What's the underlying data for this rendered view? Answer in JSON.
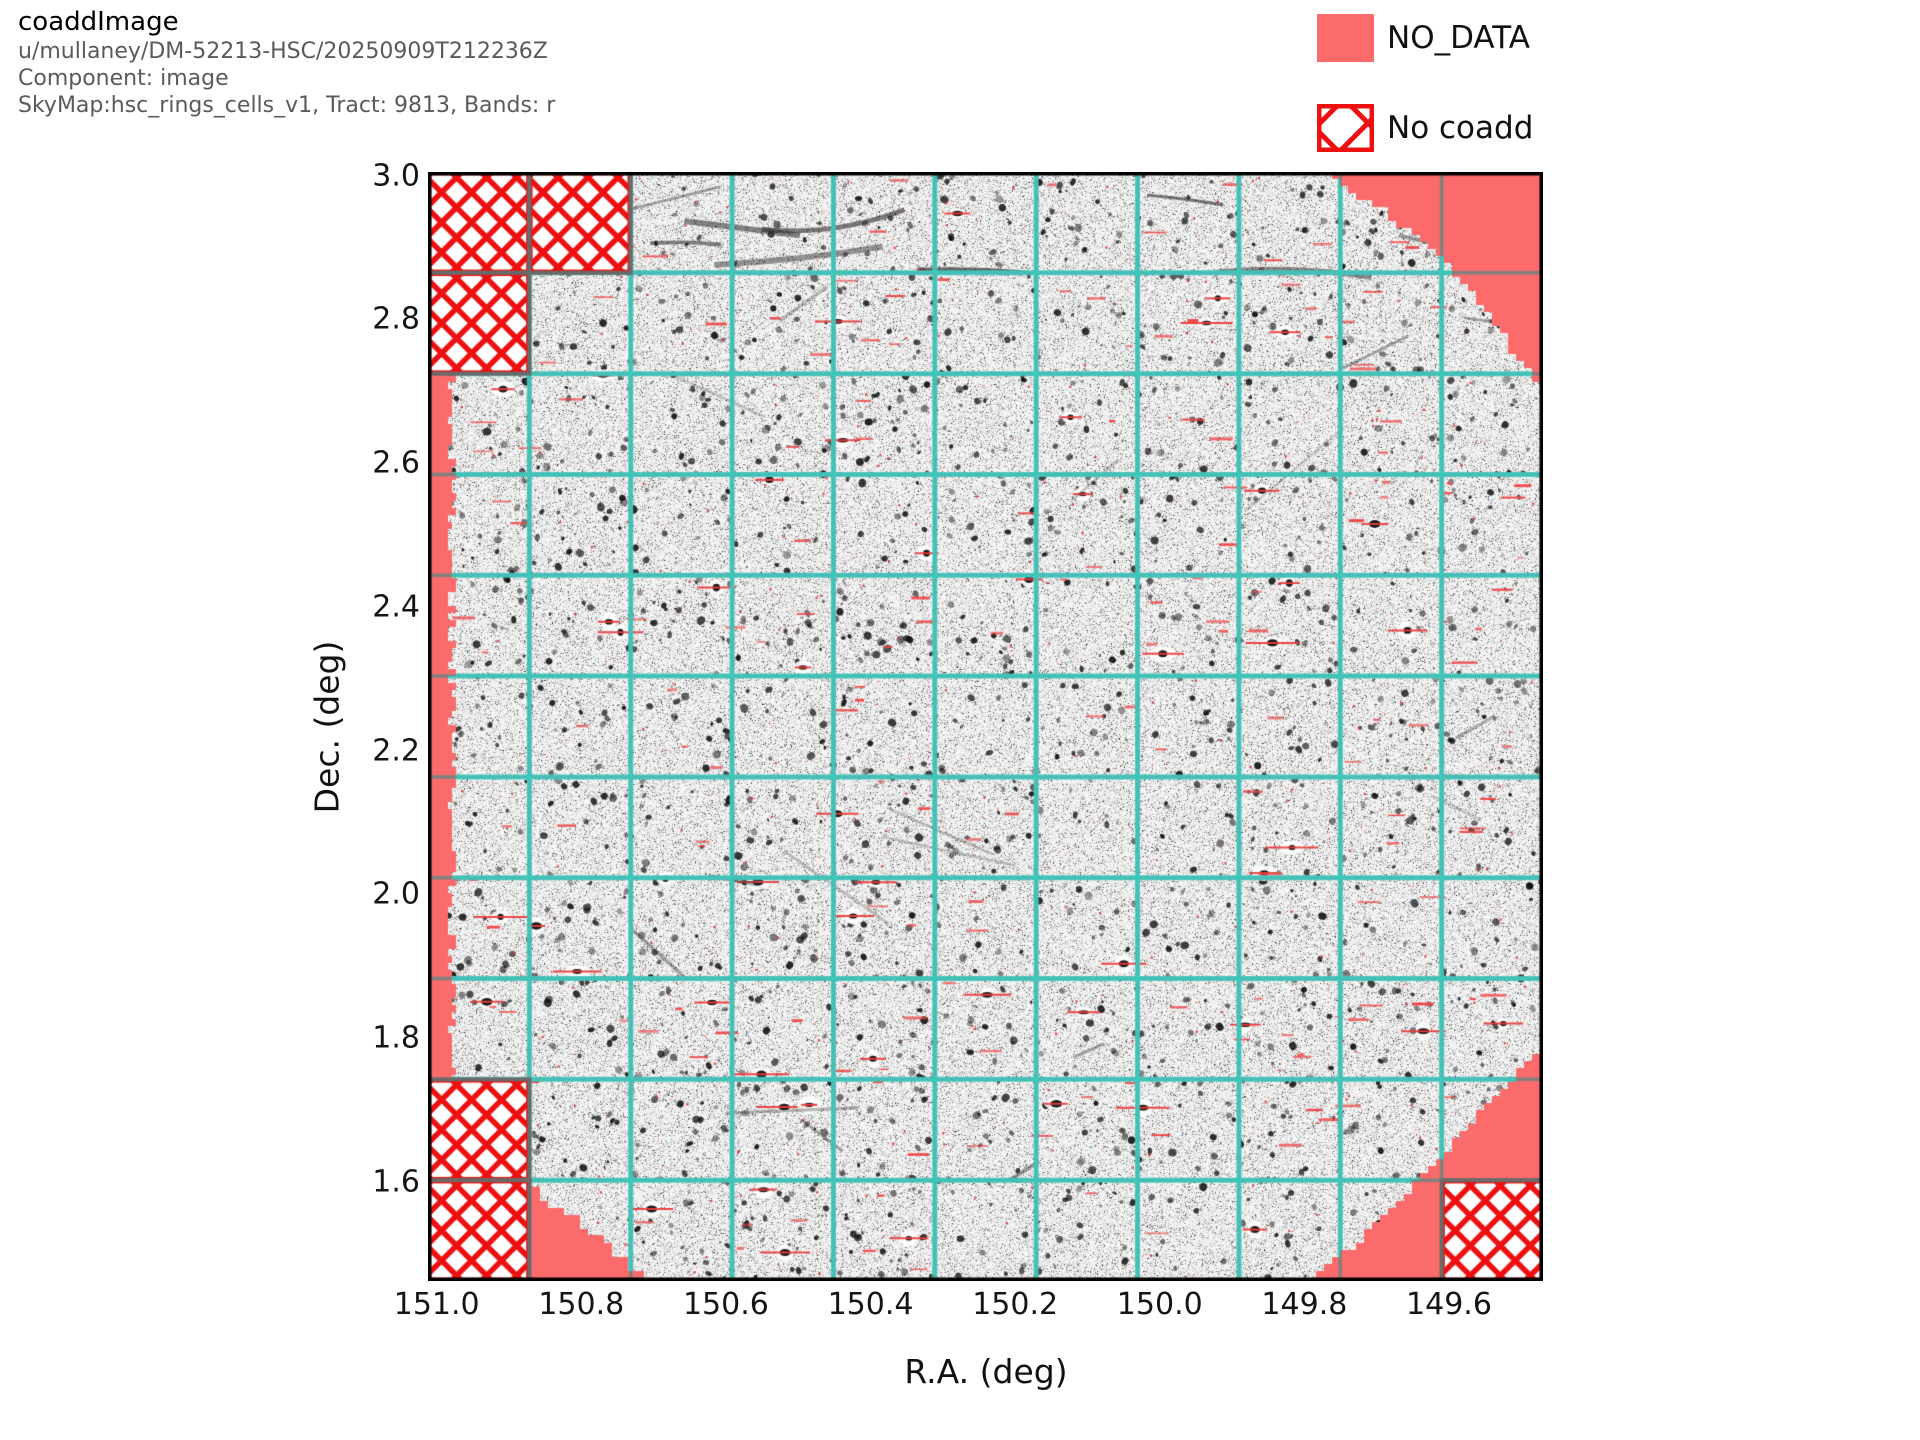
{
  "header": {
    "title": "coaddImage",
    "line1": "u/mullaney/DM-52213-HSC/20250909T212236Z",
    "line2": "Component: image",
    "line3": "SkyMap:hsc_rings_cells_v1, Tract: 9813, Bands: r"
  },
  "legend": {
    "no_data_label": "NO_DATA",
    "no_coadd_label": "No coadd"
  },
  "axes": {
    "xlabel": "R.A. (deg)",
    "ylabel": "Dec. (deg)"
  },
  "colors": {
    "no_data": "#fb6b6b",
    "cell_grid": "#3ec6bb",
    "patch_grid": "#808080",
    "hatch_red": "#ee1010",
    "patch_border": "#6a6a6a",
    "frame": "#000000",
    "image_base": "#f1f1f1"
  },
  "chart_data": {
    "type": "heatmap",
    "title": "coaddImage",
    "subtitle": [
      "u/mullaney/DM-52213-HSC/20250909T212236Z",
      "Component: image",
      "SkyMap:hsc_rings_cells_v1, Tract: 9813, Bands: r"
    ],
    "xlabel": "R.A. (deg)",
    "ylabel": "Dec. (deg)",
    "x_ticks": [
      151.0,
      150.8,
      150.6,
      150.4,
      150.2,
      150.0,
      149.8,
      149.6
    ],
    "y_ticks": [
      3.0,
      2.8,
      2.6,
      2.4,
      2.2,
      2.0,
      1.8,
      1.6
    ],
    "xlim": [
      151.012,
      149.47
    ],
    "ylim": [
      1.462,
      3.005
    ],
    "x_inverted": true,
    "grid": {
      "patch_cols": 11,
      "patch_rows": 11,
      "on": true
    },
    "tract": 9813,
    "bands": "r",
    "skymap": "hsc_rings_cells_v1",
    "legend_entries": [
      "NO_DATA",
      "No coadd"
    ],
    "legend_position": "upper right outside",
    "no_coadd_patches": [
      {
        "col": 0,
        "row": 0
      },
      {
        "col": 1,
        "row": 0
      },
      {
        "col": 0,
        "row": 1
      },
      {
        "col": 0,
        "row": 9
      },
      {
        "col": 0,
        "row": 10
      },
      {
        "col": 10,
        "row": 10
      }
    ],
    "image_region": {
      "shape": "jagged-circle",
      "center_ra": 150.25,
      "center_dec": 2.235,
      "radius_deg": 0.9
    }
  }
}
